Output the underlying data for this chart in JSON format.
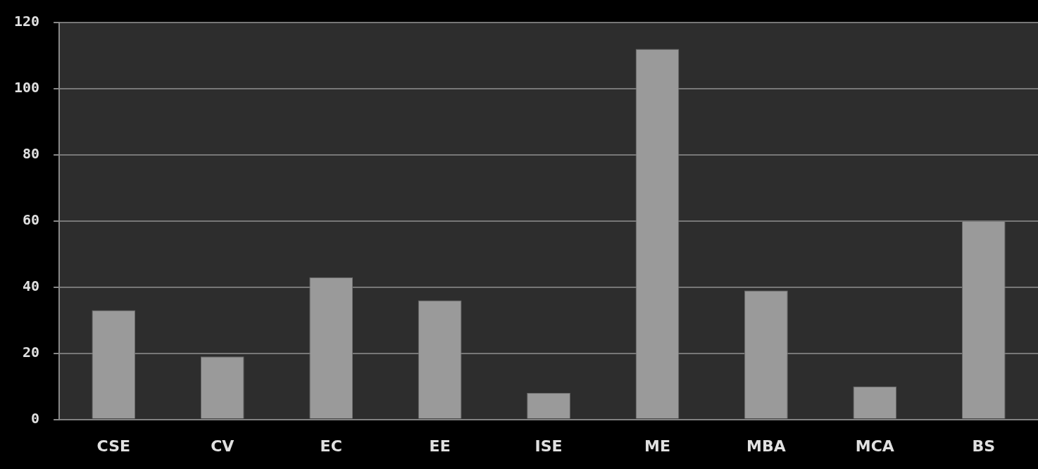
{
  "chart_data": {
    "type": "bar",
    "categories": [
      "CSE",
      "CV",
      "EC",
      "EE",
      "ISE",
      "ME",
      "MBA",
      "MCA",
      "BS"
    ],
    "values": [
      33,
      19,
      43,
      36,
      8,
      112,
      39,
      10,
      60
    ],
    "color": "#9a9a9a",
    "ylim": [
      0,
      120
    ],
    "yticks": [
      0,
      20,
      40,
      60,
      80,
      100,
      120
    ],
    "grid": "y",
    "legend": false
  }
}
